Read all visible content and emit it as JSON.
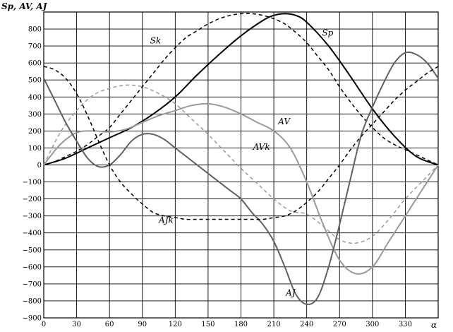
{
  "chart_data": {
    "type": "line",
    "title": "",
    "ylabel": "Sp, AV, AJ",
    "xlabel": "α",
    "xlim": [
      0,
      360
    ],
    "ylim": [
      -900,
      900
    ],
    "x_ticks": [
      0,
      30,
      60,
      90,
      120,
      150,
      180,
      210,
      240,
      270,
      300,
      330
    ],
    "y_ticks": [
      -900,
      -800,
      -700,
      -600,
      -500,
      -400,
      -300,
      -200,
      -100,
      0,
      100,
      200,
      300,
      400,
      500,
      600,
      700,
      800
    ],
    "x_tick_labels": [
      "0",
      "30",
      "60",
      "90",
      "120",
      "150",
      "180",
      "210",
      "240",
      "270",
      "300",
      "330"
    ],
    "y_tick_labels": [
      "−900",
      "−800",
      "−700",
      "−600",
      "−500",
      "−400",
      "−300",
      "−200",
      "−100",
      "0",
      "100",
      "200",
      "300",
      "400",
      "500",
      "600",
      "700",
      "800"
    ],
    "grid": true,
    "legend": "none",
    "series": [
      {
        "name": "Sp",
        "color": "#000000",
        "dash": "solid",
        "width": 2,
        "x": [
          0,
          20,
          40,
          60,
          80,
          100,
          120,
          140,
          160,
          180,
          200,
          210,
          220,
          230,
          240,
          260,
          280,
          300,
          320,
          340,
          360
        ],
        "y": [
          0,
          40,
          100,
          160,
          220,
          300,
          400,
          530,
          650,
          760,
          850,
          880,
          890,
          880,
          840,
          700,
          520,
          330,
          170,
          50,
          0
        ]
      },
      {
        "name": "Sk",
        "color": "#000000",
        "dash": "dashed",
        "width": 1.5,
        "x": [
          0,
          10,
          20,
          30,
          40,
          50,
          60,
          70,
          80,
          90,
          100,
          110,
          120,
          130,
          140,
          150,
          160,
          170,
          180,
          190,
          200,
          210,
          220,
          230,
          240,
          250,
          260,
          270,
          280,
          290,
          300,
          310,
          320,
          330,
          340,
          350,
          360
        ],
        "y": [
          0,
          20,
          50,
          80,
          120,
          170,
          220,
          300,
          380,
          460,
          540,
          620,
          690,
          750,
          790,
          830,
          860,
          880,
          890,
          890,
          880,
          860,
          830,
          780,
          720,
          640,
          560,
          460,
          370,
          290,
          220,
          160,
          120,
          90,
          60,
          30,
          0
        ]
      },
      {
        "name": "AV",
        "color": "#9a9a9a",
        "dash": "solid",
        "width": 2,
        "x": [
          0,
          15,
          30,
          45,
          60,
          75,
          90,
          105,
          120,
          135,
          150,
          165,
          180,
          195,
          210,
          225,
          240,
          255,
          270,
          285,
          300,
          315,
          330,
          345,
          360
        ],
        "y": [
          0,
          120,
          190,
          200,
          195,
          210,
          250,
          290,
          320,
          350,
          360,
          340,
          300,
          250,
          200,
          100,
          -100,
          -350,
          -560,
          -640,
          -600,
          -450,
          -300,
          -150,
          0
        ]
      },
      {
        "name": "AVk",
        "color": "#9a9a9a",
        "dash": "dashed",
        "width": 1.5,
        "x": [
          0,
          15,
          30,
          45,
          60,
          75,
          90,
          105,
          120,
          135,
          150,
          165,
          180,
          195,
          210,
          225,
          240,
          255,
          270,
          285,
          300,
          315,
          330,
          345,
          360
        ],
        "y": [
          0,
          190,
          320,
          410,
          450,
          470,
          460,
          420,
          360,
          270,
          180,
          80,
          -20,
          -110,
          -200,
          -270,
          -290,
          -360,
          -440,
          -460,
          -420,
          -320,
          -200,
          -100,
          0
        ]
      },
      {
        "name": "AJ",
        "color": "#606060",
        "dash": "solid",
        "width": 2,
        "x": [
          0,
          10,
          20,
          30,
          40,
          50,
          60,
          70,
          80,
          90,
          100,
          110,
          120,
          130,
          140,
          150,
          160,
          170,
          180,
          190,
          200,
          210,
          220,
          230,
          240,
          250,
          260,
          270,
          280,
          290,
          300,
          310,
          320,
          330,
          340,
          350,
          360
        ],
        "y": [
          510,
          380,
          250,
          140,
          40,
          -10,
          0,
          60,
          140,
          180,
          180,
          150,
          100,
          50,
          0,
          -50,
          -100,
          -150,
          -200,
          -280,
          -350,
          -450,
          -600,
          -760,
          -820,
          -780,
          -600,
          -350,
          -80,
          180,
          340,
          480,
          600,
          660,
          650,
          600,
          510
        ]
      },
      {
        "name": "AJk",
        "color": "#000000",
        "dash": "dashed",
        "width": 1.5,
        "x": [
          0,
          10,
          20,
          30,
          40,
          50,
          60,
          70,
          80,
          90,
          100,
          110,
          120,
          130,
          140,
          150,
          160,
          170,
          180,
          190,
          200,
          210,
          220,
          230,
          240,
          250,
          260,
          270,
          280,
          290,
          300,
          310,
          320,
          330,
          340,
          350,
          360
        ],
        "y": [
          580,
          560,
          510,
          420,
          290,
          140,
          0,
          -100,
          -170,
          -230,
          -280,
          -300,
          -310,
          -320,
          -320,
          -320,
          -320,
          -320,
          -320,
          -320,
          -320,
          -310,
          -300,
          -270,
          -220,
          -160,
          -80,
          0,
          90,
          170,
          240,
          310,
          380,
          440,
          490,
          540,
          580
        ]
      }
    ],
    "annotations": [
      {
        "text": "Sk",
        "x": 97,
        "y": 715
      },
      {
        "text": "Sp",
        "x": 254,
        "y": 760
      },
      {
        "text": "AV",
        "x": 214,
        "y": 240
      },
      {
        "text": "AVk",
        "x": 191,
        "y": 90
      },
      {
        "text": "AJk",
        "x": 105,
        "y": -340
      },
      {
        "text": "AJ",
        "x": 221,
        "y": -770
      }
    ]
  }
}
